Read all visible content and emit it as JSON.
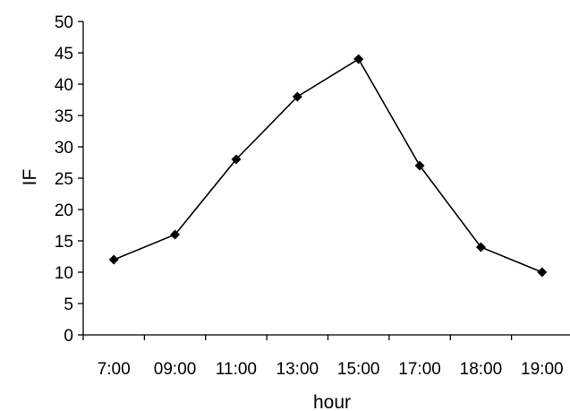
{
  "chart_data": {
    "type": "line",
    "title": "",
    "xlabel": "hour",
    "ylabel": "IF",
    "categories": [
      "7:00",
      "09:00",
      "11:00",
      "13:00",
      "15:00",
      "17:00",
      "18:00",
      "19:00"
    ],
    "series": [
      {
        "values": [
          12,
          16,
          28,
          38,
          44,
          27,
          14,
          10
        ]
      }
    ],
    "ylim": [
      0,
      50
    ],
    "yticks": [
      "0",
      "5",
      "10",
      "15",
      "20",
      "25",
      "30",
      "35",
      "40",
      "45",
      "50"
    ],
    "grid": false,
    "legend": "none",
    "line_color": "#000000",
    "marker": "diamond"
  }
}
